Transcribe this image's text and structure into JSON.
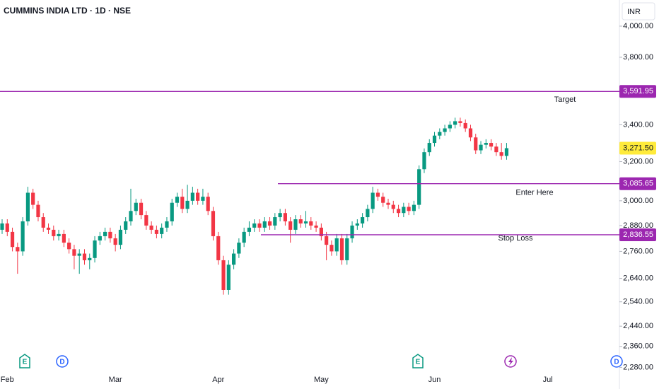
{
  "chart_data": {
    "type": "candlestick",
    "title": "CUMMINS INDIA LTD · 1D · NSE",
    "currency": "INR",
    "log_scale": true,
    "up_color": "#089981",
    "down_color": "#f23645",
    "ylim": [
      2252,
      4176
    ],
    "yticks": [
      {
        "value": 4000,
        "label": "4,000.00"
      },
      {
        "value": 3800,
        "label": "3,800.00"
      },
      {
        "value": 3400,
        "label": "3,400.00"
      },
      {
        "value": 3200,
        "label": "3,200.00"
      },
      {
        "value": 3000,
        "label": "3,000.00"
      },
      {
        "value": 2880,
        "label": "2,880.00"
      },
      {
        "value": 2760,
        "label": "2,760.00"
      },
      {
        "value": 2640,
        "label": "2,640.00"
      },
      {
        "value": 2540,
        "label": "2,540.00"
      },
      {
        "value": 2440,
        "label": "2,440.00"
      },
      {
        "value": 2360,
        "label": "2,360.00"
      },
      {
        "value": 2280,
        "label": "2,280.00"
      }
    ],
    "categories": [
      null,
      "Feb",
      null,
      null,
      null,
      null,
      null,
      null,
      null,
      null,
      null,
      null,
      null,
      null,
      null,
      null,
      null,
      null,
      null,
      null,
      null,
      null,
      "Mar",
      null,
      null,
      null,
      null,
      null,
      null,
      null,
      null,
      null,
      null,
      null,
      null,
      null,
      null,
      null,
      null,
      null,
      null,
      null,
      "Apr",
      null,
      null,
      null,
      null,
      null,
      null,
      null,
      null,
      null,
      null,
      null,
      null,
      null,
      null,
      null,
      null,
      null,
      null,
      null,
      "May",
      null,
      null,
      null,
      null,
      null,
      null,
      null,
      null,
      null,
      null,
      null,
      null,
      null,
      null,
      null,
      null,
      null,
      null,
      null,
      null,
      null,
      "Jun",
      null,
      null,
      null,
      null,
      null,
      null,
      null,
      null,
      null,
      null,
      null,
      null,
      null,
      null,
      null,
      null,
      null,
      null,
      null,
      null,
      null,
      "Jul",
      null,
      null,
      null
    ],
    "open": [
      2860,
      2890,
      2850,
      2780,
      2760,
      2900,
      3040,
      2980,
      2920,
      2870,
      2860,
      2830,
      2840,
      2800,
      2770,
      2740,
      2750,
      2720,
      2730,
      2810,
      2830,
      2850,
      2820,
      2790,
      2860,
      2900,
      2950,
      2990,
      2930,
      2880,
      2860,
      2840,
      2870,
      2900,
      2990,
      3020,
      2960,
      3000,
      3040,
      3000,
      3020,
      2950,
      2830,
      2720,
      2590,
      2700,
      2750,
      2800,
      2850,
      2870,
      2890,
      2870,
      2900,
      2880,
      2920,
      2940,
      2900,
      2860,
      2910,
      2890,
      2900,
      2880,
      2870,
      2830,
      2790,
      2760,
      2820,
      2720,
      2820,
      2880,
      2890,
      2920,
      2960,
      3040,
      3020,
      2990,
      2980,
      2960,
      2940,
      2970,
      2950,
      2980,
      3160,
      3250,
      3300,
      3340,
      3360,
      3380,
      3400,
      3420,
      3410,
      3380,
      3330,
      3260,
      3290,
      3300,
      3280,
      3250,
      3230,
      null,
      null,
      null,
      null,
      null,
      null,
      null,
      null,
      null,
      null,
      null
    ],
    "high": [
      2910,
      2910,
      2870,
      2800,
      2920,
      3070,
      3060,
      3000,
      2940,
      2890,
      2880,
      2860,
      2860,
      2820,
      2790,
      2770,
      2770,
      2750,
      2830,
      2850,
      2870,
      2870,
      2840,
      2880,
      2920,
      3060,
      3010,
      3010,
      2950,
      2900,
      2880,
      2890,
      2920,
      3010,
      3040,
      3060,
      3080,
      3070,
      3060,
      3060,
      3040,
      2970,
      2850,
      2740,
      2720,
      2770,
      2820,
      2870,
      2900,
      2910,
      2910,
      2920,
      2920,
      2940,
      2960,
      2960,
      2920,
      2930,
      2930,
      2950,
      2920,
      2900,
      2890,
      2850,
      2810,
      2840,
      2840,
      2840,
      2900,
      2910,
      2940,
      2980,
      3070,
      3060,
      3040,
      3010,
      3000,
      2980,
      2990,
      2990,
      3000,
      3180,
      3270,
      3320,
      3360,
      3380,
      3400,
      3420,
      3440,
      3440,
      3430,
      3400,
      3350,
      3310,
      3320,
      3320,
      3300,
      3300,
      3300,
      null,
      null,
      null,
      null,
      null,
      null,
      null,
      null,
      null,
      null,
      null
    ],
    "low": [
      2840,
      2830,
      2760,
      2660,
      2740,
      2880,
      2960,
      2900,
      2850,
      2840,
      2810,
      2810,
      2780,
      2750,
      2680,
      2660,
      2700,
      2680,
      2710,
      2790,
      2810,
      2800,
      2760,
      2770,
      2840,
      2880,
      2930,
      2910,
      2860,
      2840,
      2820,
      2820,
      2850,
      2880,
      2970,
      2940,
      2940,
      2980,
      2980,
      2980,
      2930,
      2810,
      2700,
      2570,
      2570,
      2680,
      2730,
      2780,
      2830,
      2850,
      2850,
      2850,
      2860,
      2860,
      2900,
      2880,
      2800,
      2840,
      2870,
      2870,
      2860,
      2850,
      2810,
      2720,
      2740,
      2740,
      2700,
      2700,
      2800,
      2860,
      2870,
      2900,
      2940,
      3000,
      2970,
      2960,
      2940,
      2920,
      2920,
      2930,
      2930,
      2960,
      3140,
      3230,
      3280,
      3320,
      3340,
      3360,
      3380,
      3390,
      3360,
      3310,
      3240,
      3240,
      3270,
      3260,
      3230,
      3210,
      3210,
      null,
      null,
      null,
      null,
      null,
      null,
      null,
      null,
      null,
      null,
      null
    ],
    "close": [
      2890,
      2850,
      2780,
      2760,
      2900,
      3040,
      2980,
      2920,
      2870,
      2860,
      2830,
      2840,
      2800,
      2770,
      2740,
      2750,
      2720,
      2730,
      2810,
      2830,
      2850,
      2820,
      2790,
      2860,
      2900,
      2950,
      2990,
      2930,
      2880,
      2860,
      2840,
      2870,
      2900,
      2990,
      3020,
      2960,
      3000,
      3040,
      3000,
      3020,
      2950,
      2830,
      2720,
      2590,
      2700,
      2750,
      2800,
      2850,
      2870,
      2890,
      2870,
      2900,
      2880,
      2920,
      2940,
      2900,
      2860,
      2910,
      2890,
      2900,
      2880,
      2870,
      2830,
      2790,
      2760,
      2820,
      2720,
      2820,
      2880,
      2890,
      2920,
      2960,
      3040,
      3020,
      2990,
      2980,
      2960,
      2940,
      2970,
      2950,
      2980,
      3160,
      3250,
      3300,
      3340,
      3360,
      3380,
      3400,
      3420,
      3410,
      3380,
      3330,
      3260,
      3290,
      3300,
      3280,
      3250,
      3230,
      3271.5,
      null,
      null,
      null,
      null,
      null,
      null,
      null,
      null,
      null,
      null,
      null
    ],
    "price_lines": [
      {
        "name": "Target",
        "value": 3591.95,
        "label": "3,591.95",
        "color": "#9c27b0"
      },
      {
        "name": "Enter Here",
        "value": 3085.65,
        "label": "3,085.65",
        "color": "#9c27b0"
      },
      {
        "name": "Stop Loss",
        "value": 2836.55,
        "label": "2,836.55",
        "color": "#9c27b0"
      }
    ],
    "last_price": {
      "value": 3271.5,
      "label": "3,271.50",
      "color": "#ffeb3b"
    },
    "events": [
      "E",
      "D",
      "E",
      "D"
    ]
  }
}
